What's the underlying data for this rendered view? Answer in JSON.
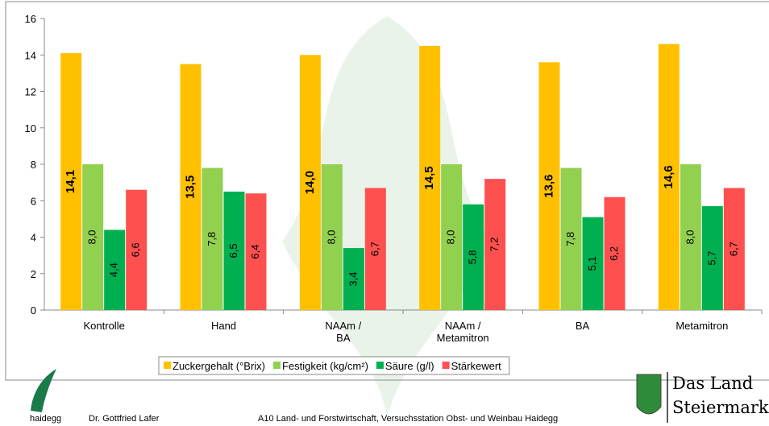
{
  "chart_data": {
    "type": "bar",
    "categories": [
      "Kontrolle",
      "Hand",
      "NAAm /\nBA",
      "NAAm /\nMetamitron",
      "BA",
      "Metamitron"
    ],
    "series": [
      {
        "name": "Zuckergehalt (°Brix)",
        "color": "#FFC000",
        "values": [
          14.1,
          13.5,
          14.0,
          14.5,
          13.6,
          14.6
        ],
        "value_labels": [
          "14,1",
          "13,5",
          "14,0",
          "14,5",
          "13,6",
          "14,6"
        ]
      },
      {
        "name": "Festigkeit (kg/cm²)",
        "color": "#92D050",
        "values": [
          8.0,
          7.8,
          8.0,
          8.0,
          7.8,
          8.0
        ],
        "value_labels": [
          "8,0",
          "7,8",
          "8,0",
          "8,0",
          "7,8",
          "8,0"
        ]
      },
      {
        "name": "Säure (g/l)",
        "color": "#00B050",
        "values": [
          4.4,
          6.5,
          3.4,
          5.8,
          5.1,
          5.7
        ],
        "value_labels": [
          "4,4",
          "6,5",
          "3,4",
          "5,8",
          "5,1",
          "5,7"
        ]
      },
      {
        "name": "Stärkewert",
        "color": "#FF5050",
        "values": [
          6.6,
          6.4,
          6.7,
          7.2,
          6.2,
          6.7
        ],
        "value_labels": [
          "6,6",
          "6,4",
          "6,7",
          "7,2",
          "6,2",
          "6,7"
        ]
      }
    ],
    "ylim": [
      0,
      16
    ],
    "yticks": [
      0,
      2,
      4,
      6,
      8,
      10,
      12,
      14,
      16
    ],
    "grid": false
  },
  "footer": {
    "logo": "haidegg",
    "author": "Dr. Gottfried Lafer",
    "institution": "A10 Land- und Forstwirtschaft, Versuchsstation Obst- und Weinbau Haidegg",
    "brand_line1": "Das Land",
    "brand_line2": "Steiermark"
  }
}
